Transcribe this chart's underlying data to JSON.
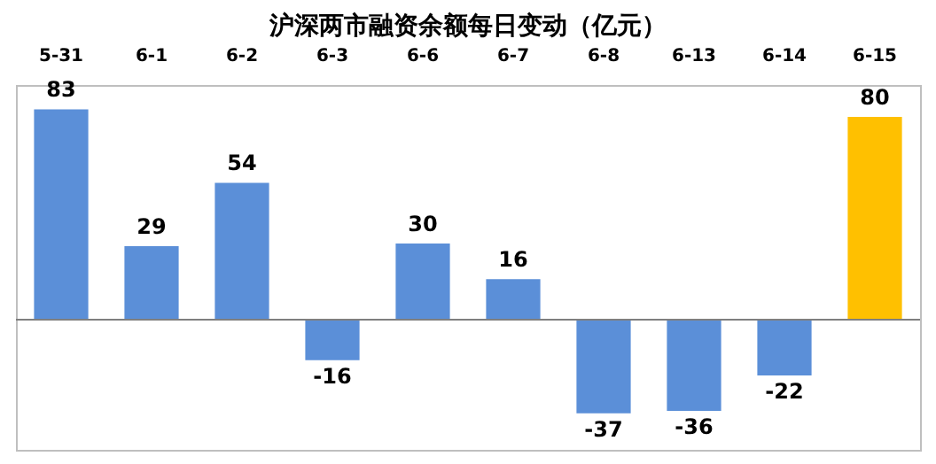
{
  "chart_data": {
    "type": "bar",
    "title": "沪深两市融资余额每日变动（亿元）",
    "categories": [
      "5-31",
      "6-1",
      "6-2",
      "6-3",
      "6-6",
      "6-7",
      "6-8",
      "6-13",
      "6-14",
      "6-15"
    ],
    "values": [
      83,
      29,
      54,
      -16,
      30,
      16,
      -37,
      -36,
      -22,
      80
    ],
    "colors": [
      "#5b8fd8",
      "#5b8fd8",
      "#5b8fd8",
      "#5b8fd8",
      "#5b8fd8",
      "#5b8fd8",
      "#5b8fd8",
      "#5b8fd8",
      "#5b8fd8",
      "#ffc000"
    ],
    "data_labels": true
  }
}
